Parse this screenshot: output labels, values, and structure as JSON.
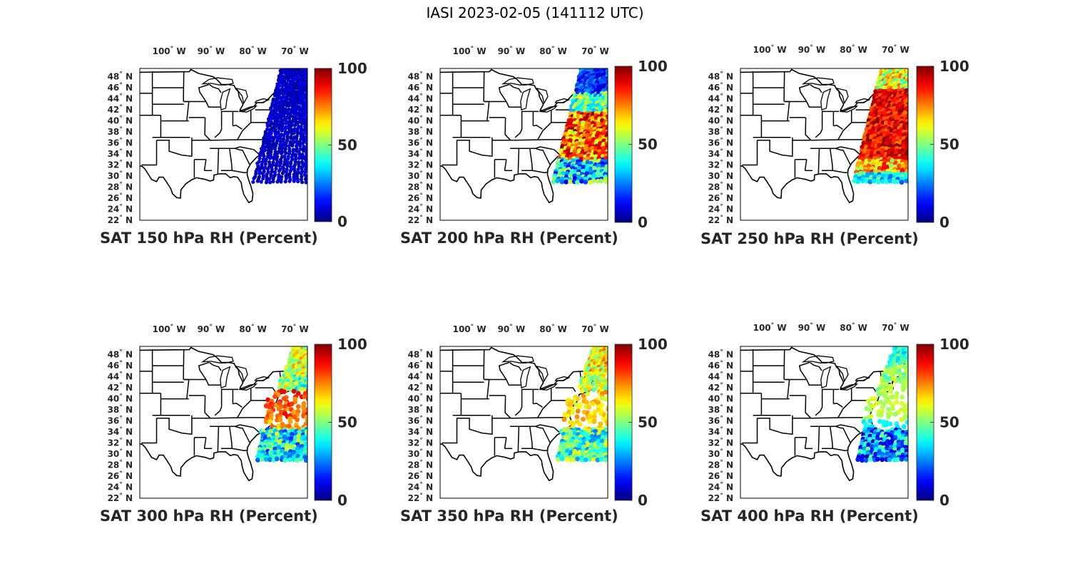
{
  "figure_title": "IASI 2023-02-05 (141112 UTC)",
  "lon_ticks": [
    "100",
    "90",
    "80",
    "70"
  ],
  "lon_suffix": "W",
  "lat_ticks": [
    "48",
    "46",
    "44",
    "42",
    "40",
    "38",
    "36",
    "34",
    "32",
    "30",
    "28",
    "26",
    "24",
    "22"
  ],
  "lat_suffix": "N",
  "degree_symbol": "°",
  "colorbar": {
    "min_label": "0",
    "mid_label": "50",
    "max_label": "100",
    "range": [
      0,
      100
    ],
    "colormap": "jet"
  },
  "chart_data": [
    {
      "type": "scatter-map",
      "title": "SAT 150 hPa RH (Percent)",
      "pressure_hPa": 150,
      "variable": "RH",
      "unit": "Percent",
      "lon_range": [
        -107,
        -67
      ],
      "lat_range": [
        22,
        49.5
      ],
      "value_range": [
        0,
        100
      ],
      "swath": "full",
      "pattern": "dry",
      "typical_rh": [
        2,
        12
      ]
    },
    {
      "type": "scatter-map",
      "title": "SAT 200 hPa RH (Percent)",
      "pressure_hPa": 200,
      "variable": "RH",
      "unit": "Percent",
      "lon_range": [
        -107,
        -67
      ],
      "lat_range": [
        22,
        49.5
      ],
      "value_range": [
        0,
        100
      ],
      "swath": "full",
      "pattern": "p200",
      "typical_rh": [
        5,
        95
      ]
    },
    {
      "type": "scatter-map",
      "title": "SAT 250 hPa RH (Percent)",
      "pressure_hPa": 250,
      "variable": "RH",
      "unit": "Percent",
      "lon_range": [
        -107,
        -67
      ],
      "lat_range": [
        22,
        49.5
      ],
      "value_range": [
        0,
        100
      ],
      "swath": "full",
      "pattern": "p250",
      "typical_rh": [
        20,
        100
      ]
    },
    {
      "type": "scatter-map",
      "title": "SAT 300 hPa RH (Percent)",
      "pressure_hPa": 300,
      "variable": "RH",
      "unit": "Percent",
      "lon_range": [
        -107,
        -67
      ],
      "lat_range": [
        22,
        49.5
      ],
      "value_range": [
        0,
        100
      ],
      "swath": "partial",
      "pattern": "p300",
      "typical_rh": [
        15,
        90
      ]
    },
    {
      "type": "scatter-map",
      "title": "SAT 350 hPa RH (Percent)",
      "pressure_hPa": 350,
      "variable": "RH",
      "unit": "Percent",
      "lon_range": [
        -107,
        -67
      ],
      "lat_range": [
        22,
        49.5
      ],
      "value_range": [
        0,
        100
      ],
      "swath": "partial",
      "pattern": "p350",
      "typical_rh": [
        20,
        70
      ]
    },
    {
      "type": "scatter-map",
      "title": "SAT 400 hPa RH (Percent)",
      "pressure_hPa": 400,
      "variable": "RH",
      "unit": "Percent",
      "lon_range": [
        -107,
        -67
      ],
      "lat_range": [
        22,
        49.5
      ],
      "value_range": [
        0,
        100
      ],
      "swath": "partial",
      "pattern": "p400",
      "typical_rh": [
        10,
        60
      ]
    }
  ]
}
